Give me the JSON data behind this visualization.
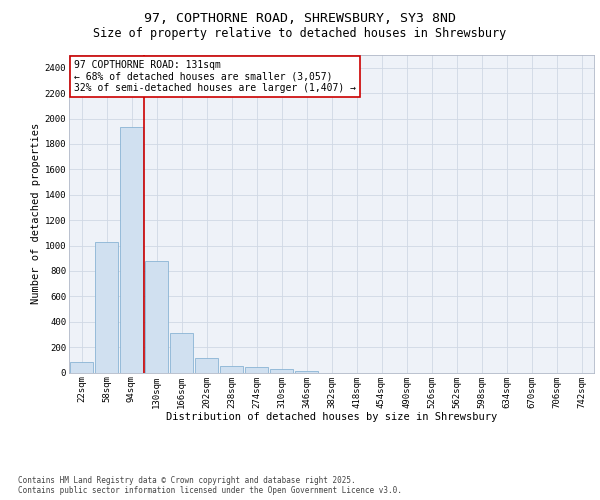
{
  "title_line1": "97, COPTHORNE ROAD, SHREWSBURY, SY3 8ND",
  "title_line2": "Size of property relative to detached houses in Shrewsbury",
  "xlabel": "Distribution of detached houses by size in Shrewsbury",
  "ylabel": "Number of detached properties",
  "bar_color": "#d0e0f0",
  "bar_edge_color": "#8ab4d4",
  "categories": [
    "22sqm",
    "58sqm",
    "94sqm",
    "130sqm",
    "166sqm",
    "202sqm",
    "238sqm",
    "274sqm",
    "310sqm",
    "346sqm",
    "382sqm",
    "418sqm",
    "454sqm",
    "490sqm",
    "526sqm",
    "562sqm",
    "598sqm",
    "634sqm",
    "670sqm",
    "706sqm",
    "742sqm"
  ],
  "values": [
    80,
    1030,
    1930,
    880,
    310,
    115,
    50,
    45,
    30,
    15,
    0,
    0,
    0,
    0,
    0,
    0,
    0,
    0,
    0,
    0,
    0
  ],
  "ylim": [
    0,
    2500
  ],
  "yticks": [
    0,
    200,
    400,
    600,
    800,
    1000,
    1200,
    1400,
    1600,
    1800,
    2000,
    2200,
    2400
  ],
  "vline_x": 2.5,
  "vline_color": "#cc0000",
  "annotation_box_text": "97 COPTHORNE ROAD: 131sqm\n← 68% of detached houses are smaller (3,057)\n32% of semi-detached houses are larger (1,407) →",
  "annotation_box_color": "#cc0000",
  "grid_color": "#d0d8e4",
  "background_color": "#eef2f8",
  "footer_text": "Contains HM Land Registry data © Crown copyright and database right 2025.\nContains public sector information licensed under the Open Government Licence v3.0.",
  "title_fontsize": 9.5,
  "subtitle_fontsize": 8.5,
  "axis_label_fontsize": 7.5,
  "tick_fontsize": 6.5,
  "annotation_fontsize": 7,
  "footer_fontsize": 5.5
}
